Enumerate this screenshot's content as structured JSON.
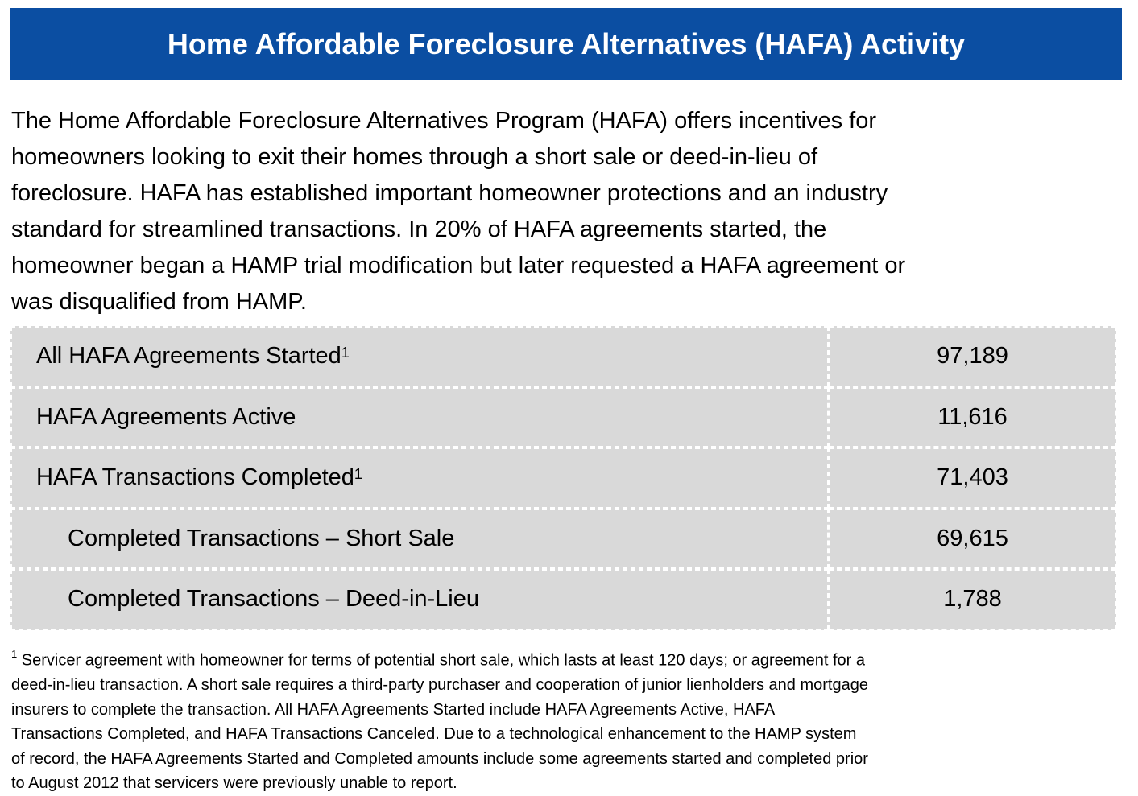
{
  "header": {
    "title": "Home Affordable Foreclosure Alternatives (HAFA) Activity"
  },
  "intro": {
    "lines": [
      "The Home Affordable Foreclosure Alternatives Program (HAFA) offers incentives for",
      "homeowners looking to exit their homes through a short sale or deed-in-lieu of",
      "foreclosure.  HAFA has established important homeowner protections and an industry",
      "standard for streamlined transactions. In 20% of HAFA agreements started, the",
      "homeowner began a HAMP trial modification but later requested a HAFA agreement or",
      "was disqualified from HAMP."
    ]
  },
  "table": {
    "rows": [
      {
        "label": "All HAFA Agreements Started",
        "note": "1",
        "value": "97,189"
      },
      {
        "label": "HAFA Agreements Active",
        "value": "11,616"
      },
      {
        "label": "HAFA Transactions Completed",
        "note": "1",
        "value": "71,403"
      },
      {
        "label": "Completed Transactions – Short Sale",
        "value": "69,615",
        "indent": true
      },
      {
        "label": "Completed Transactions – Deed-in-Lieu",
        "value": "1,788",
        "indent": true
      }
    ]
  },
  "footnote": {
    "marker": "1",
    "lines": [
      "Servicer agreement with homeowner for terms of potential short sale, which lasts at least 120 days; or agreement for a",
      "deed-in-lieu transaction. A short sale requires a third-party purchaser and cooperation of junior lienholders and mortgage",
      "insurers to complete the transaction. All HAFA Agreements Started include HAFA Agreements Active, HAFA",
      "Transactions Completed, and HAFA Transactions Canceled. Due to a technological enhancement to the HAMP system",
      "of record, the HAFA Agreements Started and Completed amounts include some agreements started and completed prior",
      "to August 2012 that servicers were previously unable to report."
    ]
  }
}
